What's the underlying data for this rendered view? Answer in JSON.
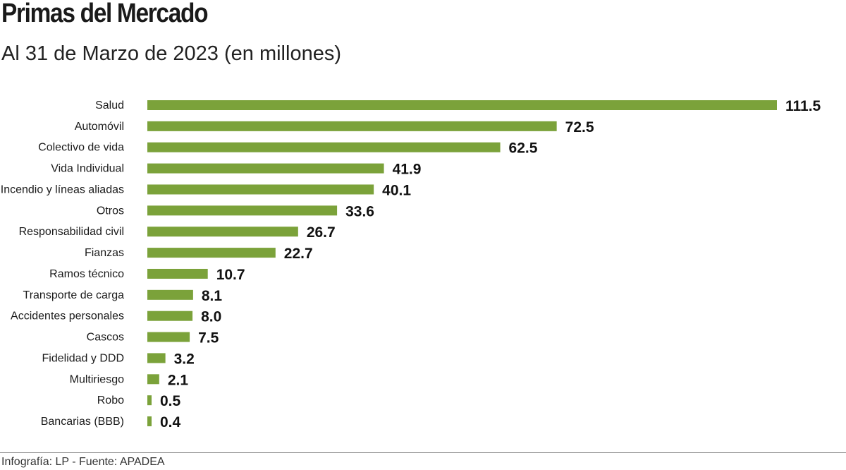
{
  "title": "Primas del Mercado",
  "subtitle": "Al 31 de Marzo de 2023 (en millones)",
  "source": "Infografía: LP - Fuente: APADEA",
  "colors": {
    "bar": "#7ba23a"
  },
  "chart_data": {
    "type": "bar",
    "orientation": "horizontal",
    "title": "Primas del Mercado",
    "subtitle": "Al 31 de Marzo de 2023 (en millones)",
    "categories": [
      "Salud",
      "Automóvil",
      "Colectivo de vida",
      "Vida Individual",
      "Incendio y líneas aliadas",
      "Otros",
      "Responsabilidad civil",
      "Fianzas",
      "Ramos técnico",
      "Transporte de carga",
      "Accidentes personales",
      "Cascos",
      "Fidelidad y DDD",
      "Multiriesgo",
      "Robo",
      "Bancarias (BBB)"
    ],
    "values": [
      111.5,
      72.5,
      62.5,
      41.9,
      40.1,
      33.6,
      26.7,
      22.7,
      10.7,
      8.1,
      8.0,
      7.5,
      3.2,
      2.1,
      0.5,
      0.4
    ],
    "value_labels": [
      "111.5",
      "72.5",
      "62.5",
      "41.9",
      "40.1",
      "33.6",
      "26.7",
      "22.7",
      "10.7",
      "8.1",
      "8.0",
      "7.5",
      "3.2",
      "2.1",
      "0.5",
      "0.4"
    ],
    "xlabel": "",
    "ylabel": "",
    "xlim": [
      0,
      111.5
    ],
    "grid": false,
    "legend": "none"
  }
}
